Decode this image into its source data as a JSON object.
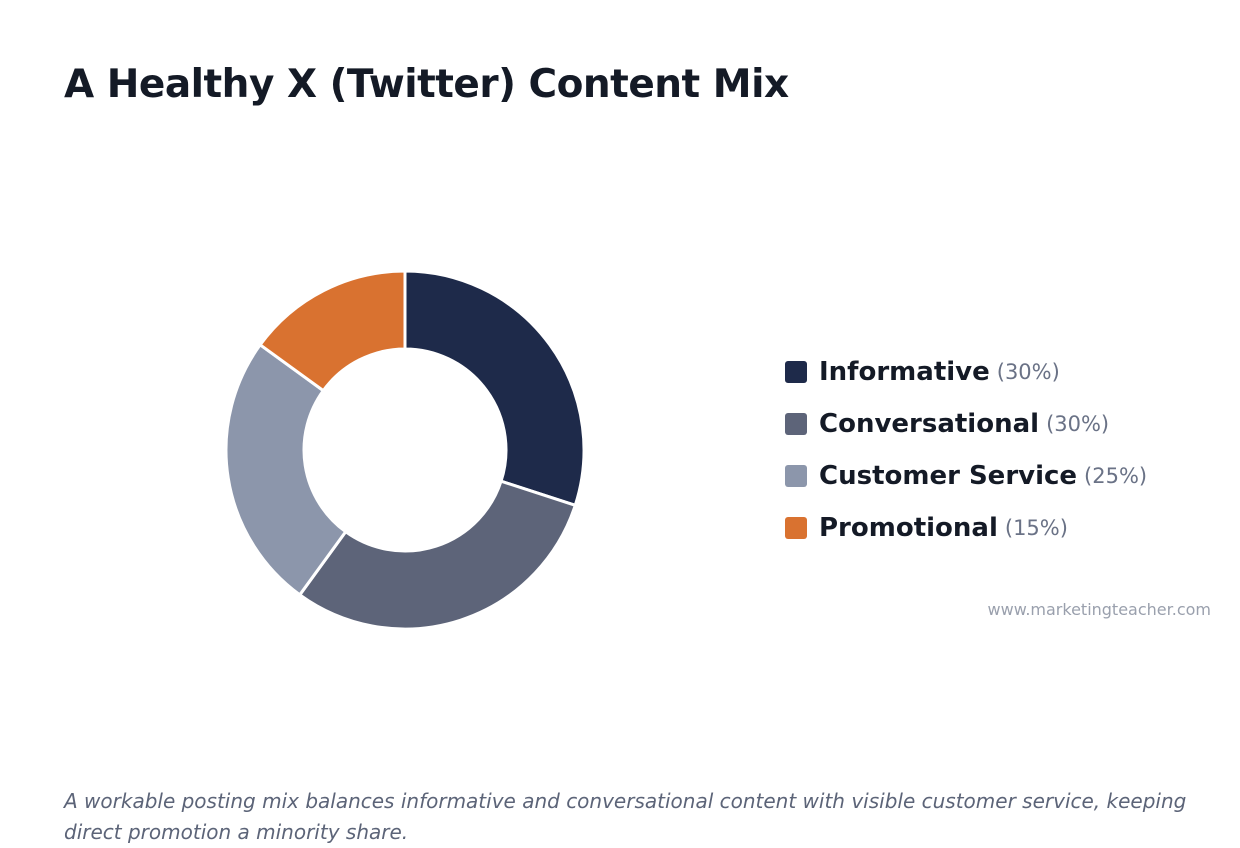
{
  "title": "A Healthy X (Twitter) Content Mix",
  "source": "www.marketingteacher.com",
  "caption": "A workable posting mix balances informative and conversational content with visible customer service, keeping direct promotion a minority share.",
  "chart_data": {
    "type": "pie",
    "variant": "donut",
    "title": "A Healthy X (Twitter) Content Mix",
    "legend_position": "right",
    "categories": [
      "Informative",
      "Conversational",
      "Customer Service",
      "Promotional"
    ],
    "values": [
      30,
      30,
      25,
      15
    ],
    "unit": "%",
    "colors": [
      "#1e2a4a",
      "#5d6479",
      "#8c96ab",
      "#d97230"
    ],
    "legend": [
      {
        "label": "Informative",
        "pct": "(30%)",
        "color": "#1e2a4a"
      },
      {
        "label": "Conversational",
        "pct": "(30%)",
        "color": "#5d6479"
      },
      {
        "label": "Customer Service",
        "pct": "(25%)",
        "color": "#8c96ab"
      },
      {
        "label": "Promotional",
        "pct": "(15%)",
        "color": "#d97230"
      }
    ]
  }
}
